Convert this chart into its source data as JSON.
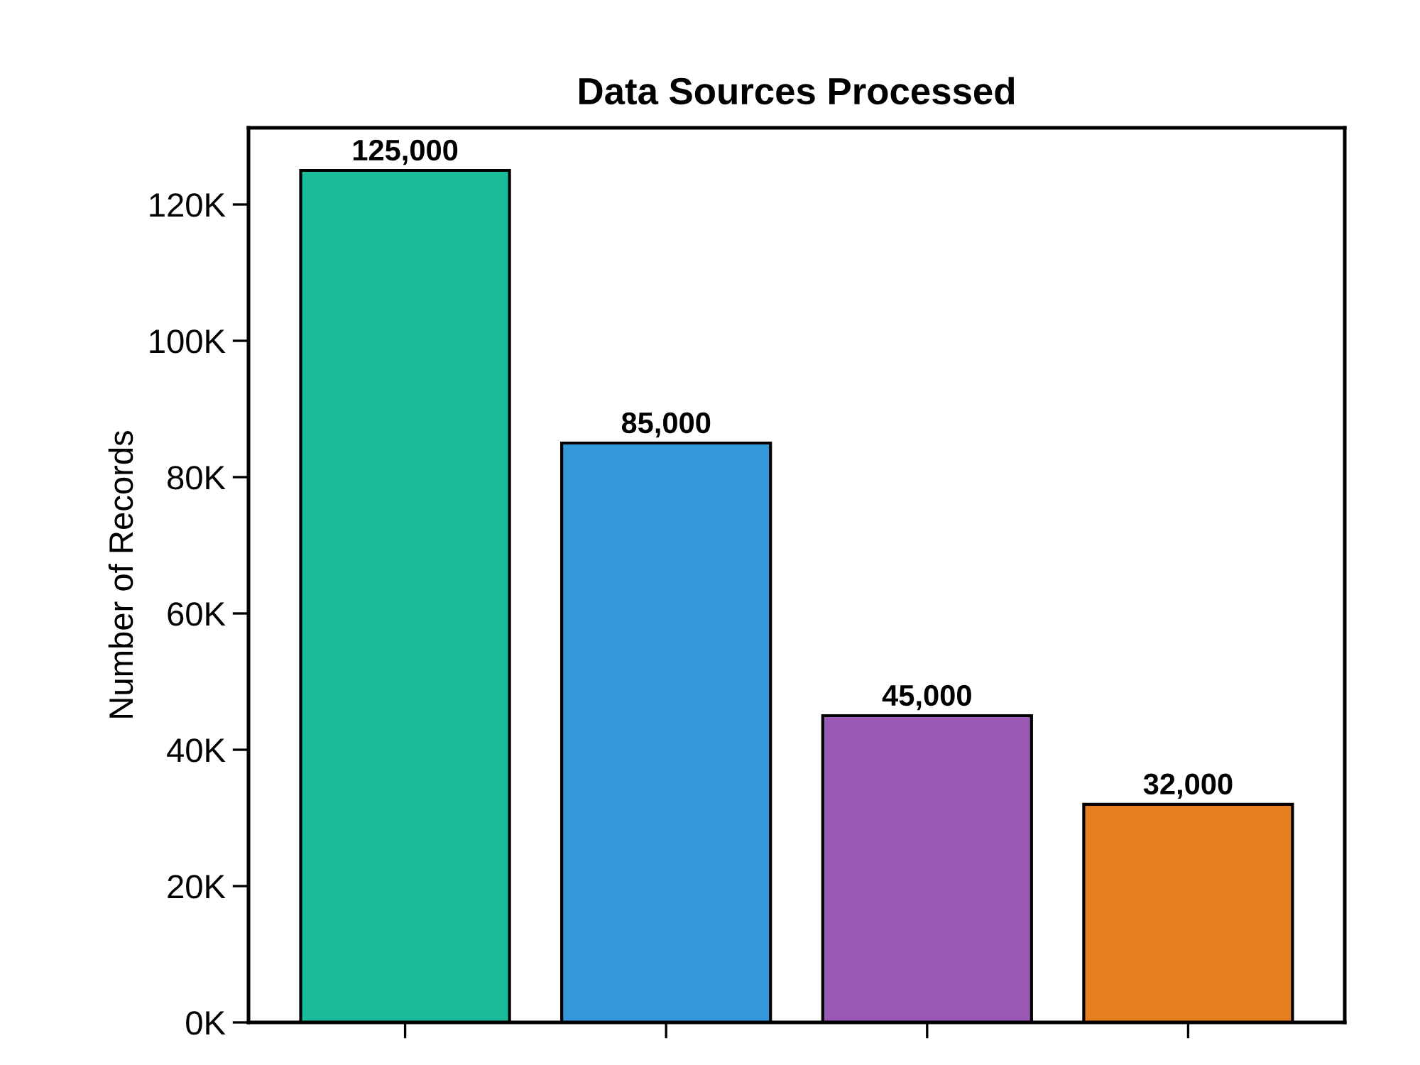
{
  "chart_data": {
    "type": "bar",
    "title": "Data Sources Processed",
    "ylabel": "Number of Records",
    "categories": [
      null,
      null,
      null,
      null
    ],
    "values": [
      125000,
      85000,
      45000,
      32000
    ],
    "colors": [
      "#1abc9c",
      "#3498db",
      "#9b59b6",
      "#e67e22"
    ],
    "value_labels": [
      "125,000",
      "85,000",
      "45,000",
      "32,000"
    ],
    "ylim": [
      0,
      131250
    ],
    "yticks": [
      {
        "value": 0,
        "label": "0K"
      },
      {
        "value": 20000,
        "label": "20K"
      },
      {
        "value": 40000,
        "label": "40K"
      },
      {
        "value": 60000,
        "label": "60K"
      },
      {
        "value": 80000,
        "label": "80K"
      },
      {
        "value": 100000,
        "label": "100K"
      },
      {
        "value": 120000,
        "label": "120K"
      }
    ],
    "grid": false
  }
}
